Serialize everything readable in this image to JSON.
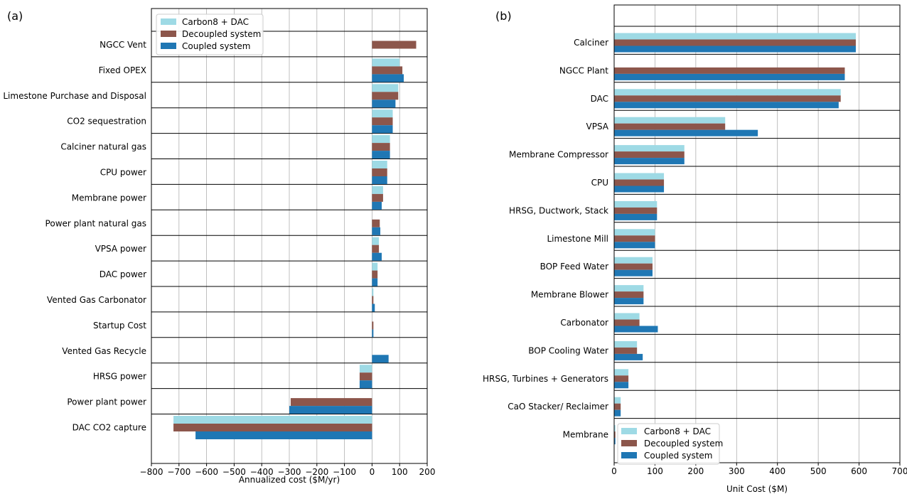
{
  "panels": [
    {
      "panel_label": "(a)",
      "legend": [
        "Carbon8 + DAC",
        "Decoupled system",
        "Coupled system"
      ]
    },
    {
      "panel_label": "(b)",
      "legend": [
        "Carbon8 + DAC",
        "Decoupled system",
        "Coupled system"
      ]
    }
  ],
  "colors": {
    "carbon8_dac": "#9edae5",
    "decoupled": "#8c564b",
    "coupled": "#1f77b4"
  },
  "chart_data": [
    {
      "type": "bar",
      "orientation": "horizontal",
      "xlabel": "Annualized cost ($M/yr)",
      "xlim": [
        -800,
        200
      ],
      "xticks": [
        -800,
        -700,
        -600,
        -500,
        -400,
        -300,
        -200,
        -100,
        0,
        100,
        200
      ],
      "xtick_labels": [
        "−800",
        "−700",
        "−600",
        "−500",
        "−400",
        "−300",
        "−200",
        "−100",
        "0",
        "100",
        "200"
      ],
      "grid": true,
      "legend_position": "upper-center",
      "categories": [
        "NGCC Vent",
        "Fixed OPEX",
        "Limestone Purchase and Disposal",
        "CO2 sequestration",
        "Calciner natural gas",
        "CPU power",
        "Membrane power",
        "Power plant natural gas",
        "VPSA power",
        "DAC power",
        "Vented Gas Carbonator",
        "Startup Cost",
        "Vented Gas Recycle",
        "HRSG power",
        "Power plant power",
        "DAC CO2 capture"
      ],
      "series": [
        {
          "name": "Carbon8 + DAC",
          "values": [
            0,
            100,
            95,
            75,
            65,
            55,
            40,
            0,
            25,
            20,
            5,
            0,
            0,
            -45,
            0,
            -720
          ]
        },
        {
          "name": "Decoupled system",
          "values": [
            160,
            110,
            95,
            75,
            65,
            55,
            40,
            28,
            25,
            20,
            5,
            5,
            0,
            -45,
            -295,
            -720
          ]
        },
        {
          "name": "Coupled system",
          "values": [
            0,
            115,
            85,
            75,
            65,
            55,
            35,
            30,
            35,
            20,
            10,
            5,
            60,
            -45,
            -300,
            -640
          ]
        }
      ]
    },
    {
      "type": "bar",
      "orientation": "horizontal",
      "xlabel": "Unit Cost ($M)",
      "xlim": [
        0,
        700
      ],
      "xticks": [
        0,
        100,
        200,
        300,
        400,
        500,
        600,
        700
      ],
      "xtick_labels": [
        "0",
        "100",
        "200",
        "300",
        "400",
        "500",
        "600",
        "700"
      ],
      "grid": true,
      "legend_position": "lower-left",
      "categories": [
        "Calciner",
        "NGCC Plant",
        "DAC",
        "VPSA",
        "Membrane Compressor",
        "CPU",
        "HRSG, Ductwork, Stack",
        "Limestone Mill",
        "BOP Feed Water",
        "Membrane Blower",
        "Carbonator",
        "BOP Cooling Water",
        "HRSG, Turbines + Generators",
        "CaO Stacker/ Reclaimer",
        "Membrane"
      ],
      "series": [
        {
          "name": "Carbon8 + DAC",
          "values": [
            592,
            0,
            555,
            272,
            172,
            122,
            105,
            100,
            94,
            72,
            62,
            56,
            35,
            16,
            3
          ]
        },
        {
          "name": "Decoupled system",
          "values": [
            592,
            565,
            555,
            272,
            172,
            122,
            105,
            100,
            94,
            72,
            62,
            56,
            35,
            16,
            3
          ]
        },
        {
          "name": "Coupled system",
          "values": [
            592,
            565,
            550,
            352,
            172,
            122,
            105,
            100,
            94,
            72,
            107,
            70,
            35,
            16,
            3
          ]
        }
      ]
    }
  ]
}
